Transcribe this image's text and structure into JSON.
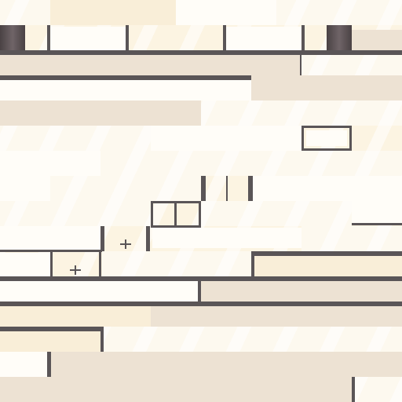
{
  "scene": {
    "type": "top-down tile floor",
    "visible_text": "none"
  },
  "palette": {
    "floor": "#fcf4e2",
    "floor_bright": "#fffdf8",
    "floor_shaded": "#ede2d3",
    "wall": "#5a5557",
    "wall_dark": "#4a4244"
  },
  "markers": [
    {
      "icon": "cross-marker-icon"
    },
    {
      "icon": "cross-marker-icon"
    }
  ]
}
